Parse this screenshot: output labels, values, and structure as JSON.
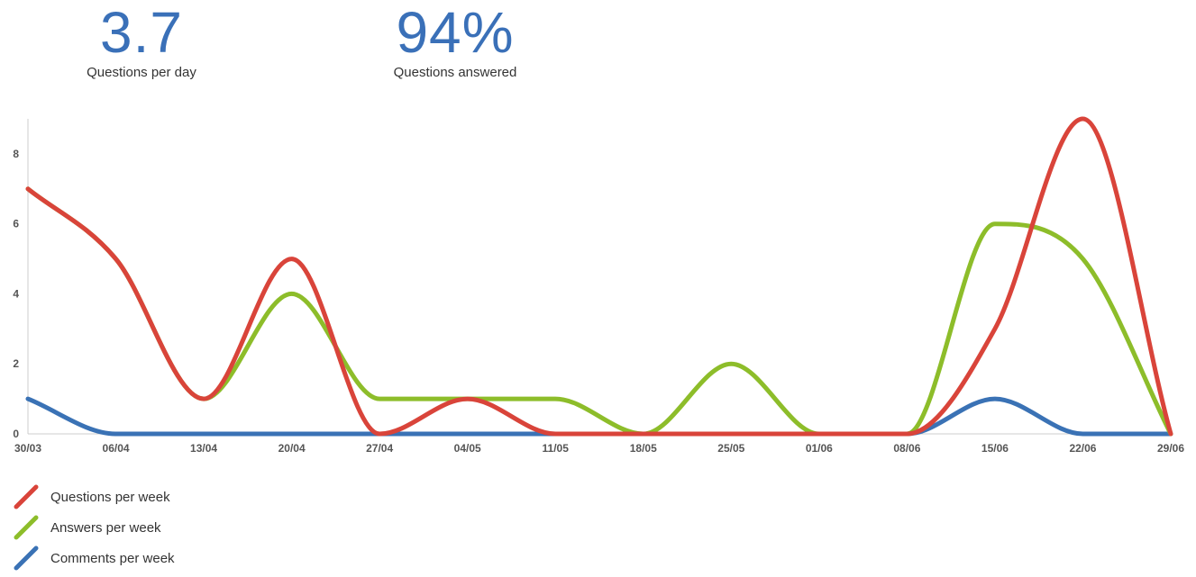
{
  "stats": [
    {
      "value": "3.7",
      "label": "Questions per day"
    },
    {
      "value": "94%",
      "label": "Questions answered"
    }
  ],
  "colors": {
    "stat_value": "#3a70b8",
    "questions": "#d9443a",
    "answers": "#8dbd2a",
    "comments": "#3a72b5",
    "axis": "#cccccc",
    "tick_text": "#555555"
  },
  "chart_data": {
    "type": "line",
    "title": "",
    "xlabel": "",
    "ylabel": "",
    "categories": [
      "30/03",
      "06/04",
      "13/04",
      "20/04",
      "27/04",
      "04/05",
      "11/05",
      "18/05",
      "25/05",
      "01/06",
      "08/06",
      "15/06",
      "22/06",
      "29/06"
    ],
    "ylim": [
      0,
      9
    ],
    "y_ticks": [
      "0",
      "2",
      "4",
      "6",
      "8"
    ],
    "grid": false,
    "legend_position": "bottom-left",
    "series": [
      {
        "name": "Questions per week",
        "color": "#d9443a",
        "values": [
          7,
          5,
          1,
          5,
          0,
          1,
          0,
          0,
          0,
          0,
          0,
          3,
          9,
          0
        ]
      },
      {
        "name": "Answers per week",
        "color": "#8dbd2a",
        "values": [
          7,
          5,
          1,
          4,
          1,
          1,
          1,
          0,
          2,
          0,
          0,
          6,
          5,
          0
        ]
      },
      {
        "name": "Comments per week",
        "color": "#3a72b5",
        "values": [
          1,
          0,
          0,
          0,
          0,
          0,
          0,
          0,
          0,
          0,
          0,
          1,
          0,
          0
        ]
      }
    ]
  }
}
